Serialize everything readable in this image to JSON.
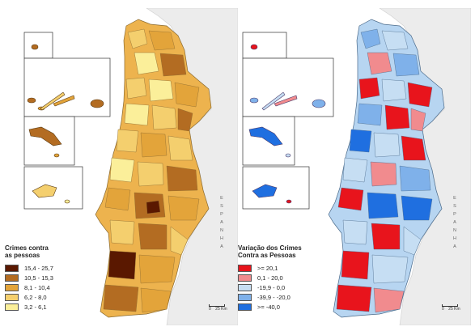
{
  "maps": [
    {
      "id": "crimes",
      "legend": {
        "title": "Crimes contra\nas pessoas",
        "classes": [
          {
            "label": "15,4 - 25,7",
            "color": "#5a1800"
          },
          {
            "label": "10,5 - 15,3",
            "color": "#b36c22"
          },
          {
            "label": "8,1 - 10,4",
            "color": "#e3a43a"
          },
          {
            "label": "6,2 - 8,0",
            "color": "#f4cf6e"
          },
          {
            "label": "3,2 - 6,1",
            "color": "#fbef9a"
          }
        ]
      },
      "neighbor_country": "E S P A N H A",
      "scale": {
        "zero": "0",
        "distance": "25 Km"
      },
      "base_color": "#edb34e"
    },
    {
      "id": "variation",
      "legend": {
        "title": "Variação dos Crimes\nContra as Pessoas",
        "classes": [
          {
            "label": ">= 20,1",
            "color": "#e8141c"
          },
          {
            "label": "0,1 - 20,0",
            "color": "#f18b8e"
          },
          {
            "label": "-19,9 - 0,0",
            "color": "#c6def3"
          },
          {
            "label": "-39,9 - -20,0",
            "color": "#7fb1ea"
          },
          {
            "label": ">= -40,0",
            "color": "#1f6fe0"
          }
        ]
      },
      "neighbor_country": "E S P A N H A",
      "scale": {
        "zero": "0",
        "distance": "25 Km"
      },
      "base_color": "#b7d5f1"
    }
  ]
}
